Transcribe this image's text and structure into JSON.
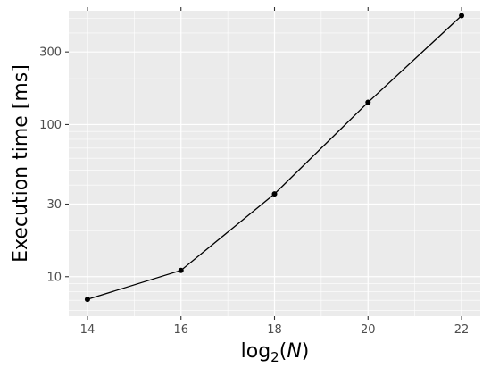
{
  "chart_data": {
    "type": "line",
    "title": "",
    "xlabel": {
      "prefix": "log",
      "subscript": "2",
      "open": "(",
      "var": "N",
      "close": ")"
    },
    "ylabel": "Execution time [ms]",
    "xlim": [
      13.6,
      22.4
    ],
    "ylim": [
      5.5,
      560
    ],
    "y_scale": "log",
    "grid": true,
    "x_ticks": [
      14,
      16,
      18,
      20,
      22
    ],
    "x_tick_labels": [
      "14",
      "16",
      "18",
      "20",
      "22"
    ],
    "y_ticks": [
      10,
      30,
      100,
      300
    ],
    "y_tick_labels": [
      "10",
      "30",
      "100",
      "300"
    ],
    "x_minor_gridlines": [
      15,
      17,
      19,
      21
    ],
    "series": [
      {
        "x": [
          14,
          16,
          18,
          20,
          22
        ],
        "y": [
          7.1,
          11.0,
          35.0,
          140.0,
          520.0
        ]
      }
    ],
    "colors": {
      "panel_bg": "#ebebeb",
      "grid": "#ffffff",
      "line": "#000000",
      "point": "#000000"
    }
  }
}
